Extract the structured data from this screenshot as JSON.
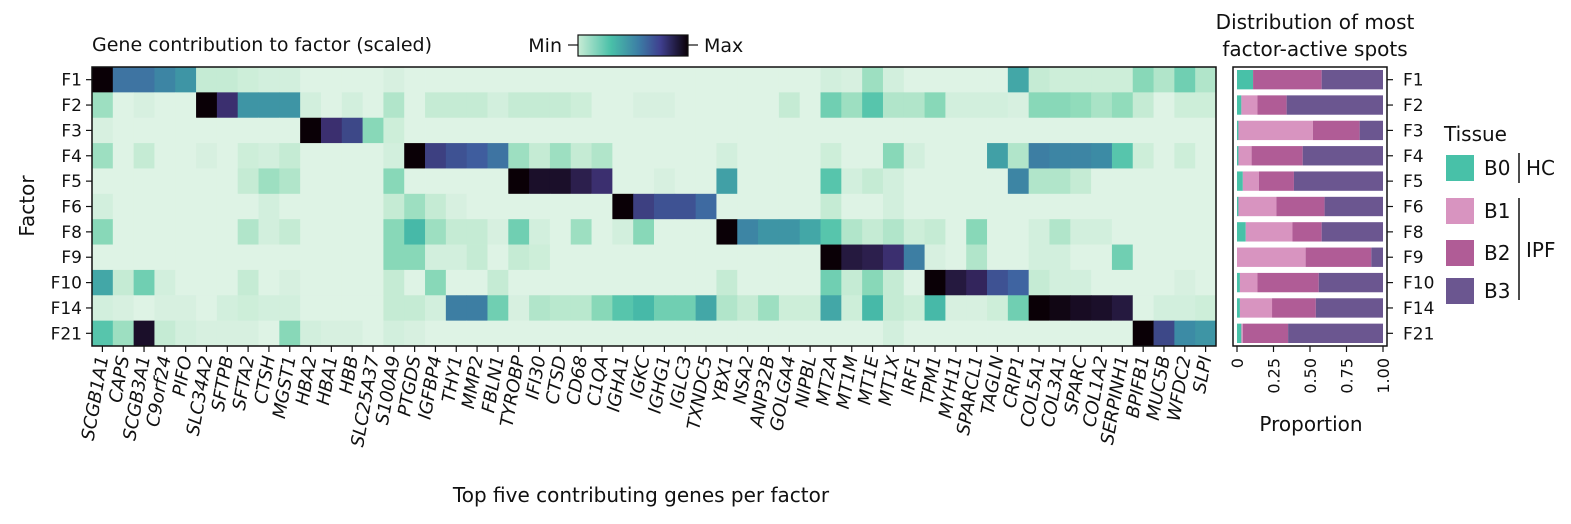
{
  "heatmap_title": "Gene contribution to factor (scaled)",
  "colorbar": {
    "min_label": "Min",
    "max_label": "Max"
  },
  "y_axis_label": "Factor",
  "x_axis_label": "Top five contributing genes per factor",
  "right_title_line1": "Distribution of most",
  "right_title_line2": "factor-active spots",
  "right_xlabel": "Proportion",
  "legend": {
    "title": "Tissue",
    "items": [
      {
        "label": "B0",
        "color": "#48c1a8"
      },
      {
        "label": "B1",
        "color": "#d894c0"
      },
      {
        "label": "B2",
        "color": "#b05c96"
      },
      {
        "label": "B3",
        "color": "#6b5690"
      }
    ],
    "groups": [
      {
        "label": "HC"
      },
      {
        "label": "IPF"
      }
    ]
  },
  "colors": {
    "scale": [
      "#eaf6ee",
      "#c8ecd5",
      "#8fdbba",
      "#49c0a8",
      "#3c8ea5",
      "#3f5fa0",
      "#3b2c6c",
      "#0a0006"
    ]
  },
  "chart_data": [
    {
      "type": "heatmap",
      "title": "Gene contribution to factor (scaled)",
      "ylabel": "Factor",
      "xlabel": "Top five contributing genes per factor",
      "rows": [
        "F1",
        "F2",
        "F3",
        "F4",
        "F5",
        "F6",
        "F8",
        "F9",
        "F10",
        "F14",
        "F21"
      ],
      "columns": [
        "SCGB1A1",
        "CAPS",
        "SCGB3A1",
        "C9orf24",
        "PIFO",
        "SLC34A2",
        "SFTPB",
        "SFTA2",
        "CTSH",
        "MGST1",
        "HBA2",
        "HBA1",
        "HBB",
        "SLC25A37",
        "S100A9",
        "PTGDS",
        "IGFBP4",
        "THY1",
        "MMP2",
        "FBLN1",
        "TYROBP",
        "IFI30",
        "CTSD",
        "CD68",
        "C1QA",
        "IGHA1",
        "IGKC",
        "IGHG1",
        "IGLC3",
        "TXNDC5",
        "YBX1",
        "NSA2",
        "ANP32B",
        "GOLGA4",
        "NIPBL",
        "MT2A",
        "MT1M",
        "MT1E",
        "MT1X",
        "IRF1",
        "TPM1",
        "MYH11",
        "SPARCL1",
        "TAGLN",
        "CRIP1",
        "COL5A1",
        "COL3A1",
        "SPARC",
        "COL1A2",
        "SERPINH1",
        "BPIFB1",
        "MUC5B",
        "WFDC2",
        "SLPI"
      ],
      "value_range": [
        0,
        1
      ],
      "values": [
        [
          1.0,
          0.65,
          0.65,
          0.6,
          0.55,
          0.15,
          0.15,
          0.12,
          0.1,
          0.1,
          0.05,
          0.05,
          0.05,
          0.05,
          0.08,
          0.05,
          0.05,
          0.05,
          0.05,
          0.05,
          0.05,
          0.05,
          0.05,
          0.05,
          0.05,
          0.05,
          0.05,
          0.05,
          0.05,
          0.05,
          0.05,
          0.05,
          0.05,
          0.05,
          0.05,
          0.1,
          0.08,
          0.25,
          0.1,
          0.05,
          0.05,
          0.05,
          0.05,
          0.05,
          0.5,
          0.15,
          0.12,
          0.12,
          0.12,
          0.12,
          0.3,
          0.2,
          0.35,
          0.2
        ],
        [
          0.25,
          0.05,
          0.08,
          0.05,
          0.05,
          1.0,
          0.85,
          0.55,
          0.55,
          0.55,
          0.1,
          0.05,
          0.1,
          0.05,
          0.2,
          0.05,
          0.15,
          0.15,
          0.15,
          0.1,
          0.15,
          0.15,
          0.15,
          0.12,
          0.05,
          0.05,
          0.08,
          0.08,
          0.05,
          0.05,
          0.05,
          0.05,
          0.05,
          0.15,
          0.05,
          0.35,
          0.25,
          0.4,
          0.2,
          0.2,
          0.3,
          0.1,
          0.1,
          0.1,
          0.08,
          0.3,
          0.3,
          0.28,
          0.22,
          0.28,
          0.15,
          0.05,
          0.12,
          0.12
        ],
        [
          0.08,
          0.05,
          0.05,
          0.05,
          0.05,
          0.05,
          0.05,
          0.05,
          0.05,
          0.05,
          1.0,
          0.85,
          0.78,
          0.3,
          0.12,
          0.05,
          0.05,
          0.05,
          0.05,
          0.05,
          0.05,
          0.05,
          0.05,
          0.05,
          0.05,
          0.05,
          0.05,
          0.05,
          0.05,
          0.05,
          0.05,
          0.05,
          0.05,
          0.05,
          0.05,
          0.05,
          0.05,
          0.05,
          0.05,
          0.05,
          0.05,
          0.05,
          0.05,
          0.05,
          0.05,
          0.05,
          0.05,
          0.05,
          0.05,
          0.05,
          0.05,
          0.05,
          0.05,
          0.05
        ],
        [
          0.25,
          0.05,
          0.15,
          0.05,
          0.05,
          0.08,
          0.05,
          0.12,
          0.1,
          0.15,
          0.05,
          0.05,
          0.05,
          0.05,
          0.1,
          1.0,
          0.8,
          0.75,
          0.72,
          0.65,
          0.25,
          0.15,
          0.25,
          0.15,
          0.2,
          0.05,
          0.05,
          0.05,
          0.05,
          0.05,
          0.1,
          0.05,
          0.05,
          0.05,
          0.05,
          0.12,
          0.05,
          0.05,
          0.3,
          0.1,
          0.05,
          0.05,
          0.05,
          0.52,
          0.2,
          0.62,
          0.6,
          0.6,
          0.58,
          0.4,
          0.12,
          0.05,
          0.12,
          0.05
        ],
        [
          0.05,
          0.05,
          0.05,
          0.05,
          0.05,
          0.05,
          0.05,
          0.15,
          0.25,
          0.2,
          0.05,
          0.05,
          0.05,
          0.05,
          0.3,
          0.05,
          0.05,
          0.05,
          0.05,
          0.05,
          1.0,
          0.95,
          0.95,
          0.9,
          0.85,
          0.05,
          0.05,
          0.08,
          0.05,
          0.05,
          0.52,
          0.05,
          0.05,
          0.05,
          0.05,
          0.4,
          0.1,
          0.15,
          0.1,
          0.05,
          0.05,
          0.05,
          0.05,
          0.05,
          0.6,
          0.2,
          0.2,
          0.15,
          0.05,
          0.05,
          0.05,
          0.05,
          0.05,
          0.05
        ],
        [
          0.1,
          0.05,
          0.05,
          0.05,
          0.05,
          0.05,
          0.05,
          0.05,
          0.1,
          0.05,
          0.05,
          0.05,
          0.05,
          0.05,
          0.15,
          0.25,
          0.15,
          0.08,
          0.05,
          0.05,
          0.05,
          0.05,
          0.05,
          0.05,
          0.05,
          1.0,
          0.8,
          0.75,
          0.75,
          0.68,
          0.05,
          0.05,
          0.05,
          0.05,
          0.05,
          0.15,
          0.05,
          0.05,
          0.1,
          0.05,
          0.05,
          0.05,
          0.05,
          0.05,
          0.05,
          0.05,
          0.05,
          0.05,
          0.05,
          0.05,
          0.05,
          0.05,
          0.05,
          0.05
        ],
        [
          0.3,
          0.05,
          0.05,
          0.05,
          0.05,
          0.05,
          0.05,
          0.2,
          0.1,
          0.15,
          0.05,
          0.05,
          0.05,
          0.05,
          0.3,
          0.45,
          0.25,
          0.15,
          0.15,
          0.08,
          0.35,
          0.1,
          0.05,
          0.25,
          0.05,
          0.1,
          0.3,
          0.05,
          0.05,
          0.05,
          1.0,
          0.6,
          0.55,
          0.55,
          0.5,
          0.4,
          0.2,
          0.15,
          0.2,
          0.12,
          0.15,
          0.05,
          0.3,
          0.05,
          0.05,
          0.1,
          0.2,
          0.1,
          0.1,
          0.05,
          0.05,
          0.05,
          0.05,
          0.05
        ],
        [
          0.05,
          0.05,
          0.05,
          0.05,
          0.05,
          0.05,
          0.05,
          0.05,
          0.05,
          0.05,
          0.05,
          0.05,
          0.05,
          0.05,
          0.3,
          0.3,
          0.1,
          0.1,
          0.15,
          0.05,
          0.15,
          0.12,
          0.05,
          0.05,
          0.05,
          0.05,
          0.05,
          0.05,
          0.05,
          0.05,
          0.05,
          0.05,
          0.05,
          0.05,
          0.05,
          1.0,
          0.92,
          0.9,
          0.85,
          0.62,
          0.08,
          0.05,
          0.2,
          0.05,
          0.05,
          0.1,
          0.1,
          0.05,
          0.05,
          0.35,
          0.05,
          0.05,
          0.05,
          0.05
        ],
        [
          0.5,
          0.15,
          0.35,
          0.1,
          0.05,
          0.05,
          0.05,
          0.15,
          0.05,
          0.08,
          0.05,
          0.05,
          0.05,
          0.05,
          0.15,
          0.05,
          0.3,
          0.05,
          0.05,
          0.15,
          0.05,
          0.05,
          0.05,
          0.05,
          0.05,
          0.05,
          0.05,
          0.05,
          0.05,
          0.05,
          0.15,
          0.05,
          0.05,
          0.05,
          0.05,
          0.35,
          0.15,
          0.3,
          0.15,
          0.05,
          1.0,
          0.92,
          0.88,
          0.75,
          0.7,
          0.15,
          0.1,
          0.1,
          0.05,
          0.05,
          0.05,
          0.05,
          0.08,
          0.05
        ],
        [
          0.1,
          0.08,
          0.05,
          0.08,
          0.08,
          0.05,
          0.1,
          0.12,
          0.1,
          0.1,
          0.05,
          0.05,
          0.05,
          0.05,
          0.15,
          0.15,
          0.1,
          0.62,
          0.62,
          0.35,
          0.08,
          0.2,
          0.18,
          0.18,
          0.3,
          0.4,
          0.45,
          0.35,
          0.35,
          0.5,
          0.2,
          0.15,
          0.25,
          0.12,
          0.12,
          0.5,
          0.12,
          0.45,
          0.15,
          0.12,
          0.45,
          0.08,
          0.08,
          0.12,
          0.35,
          1.0,
          0.98,
          0.96,
          0.95,
          0.92,
          0.05,
          0.1,
          0.1,
          0.12
        ],
        [
          0.4,
          0.25,
          0.95,
          0.15,
          0.1,
          0.08,
          0.08,
          0.08,
          0.05,
          0.3,
          0.1,
          0.08,
          0.08,
          0.05,
          0.1,
          0.08,
          0.05,
          0.05,
          0.05,
          0.05,
          0.05,
          0.05,
          0.05,
          0.05,
          0.05,
          0.05,
          0.05,
          0.05,
          0.05,
          0.05,
          0.05,
          0.05,
          0.05,
          0.05,
          0.05,
          0.05,
          0.05,
          0.05,
          0.1,
          0.05,
          0.05,
          0.05,
          0.05,
          0.05,
          0.05,
          0.05,
          0.05,
          0.05,
          0.05,
          0.05,
          1.0,
          0.78,
          0.58,
          0.55
        ]
      ]
    },
    {
      "type": "bar",
      "orientation": "horizontal",
      "stacked": true,
      "title": "Distribution of most factor-active spots",
      "xlabel": "Proportion",
      "xlim": [
        0,
        1
      ],
      "xticks": [
        "0",
        "0.25",
        "0.50",
        "0.75",
        "1.00"
      ],
      "categories": [
        "F1",
        "F2",
        "F3",
        "F4",
        "F5",
        "F6",
        "F8",
        "F9",
        "F10",
        "F14",
        "F21"
      ],
      "series": [
        {
          "name": "B0",
          "values": [
            0.11,
            0.03,
            0.01,
            0.01,
            0.04,
            0.01,
            0.06,
            0.0,
            0.02,
            0.02,
            0.03
          ]
        },
        {
          "name": "B1",
          "values": [
            0.0,
            0.11,
            0.51,
            0.09,
            0.11,
            0.26,
            0.32,
            0.47,
            0.12,
            0.22,
            0.01
          ]
        },
        {
          "name": "B2",
          "values": [
            0.47,
            0.2,
            0.32,
            0.35,
            0.24,
            0.33,
            0.2,
            0.45,
            0.42,
            0.3,
            0.31
          ]
        },
        {
          "name": "B3",
          "values": [
            0.42,
            0.66,
            0.16,
            0.55,
            0.61,
            0.4,
            0.42,
            0.08,
            0.44,
            0.46,
            0.65
          ]
        }
      ]
    }
  ]
}
